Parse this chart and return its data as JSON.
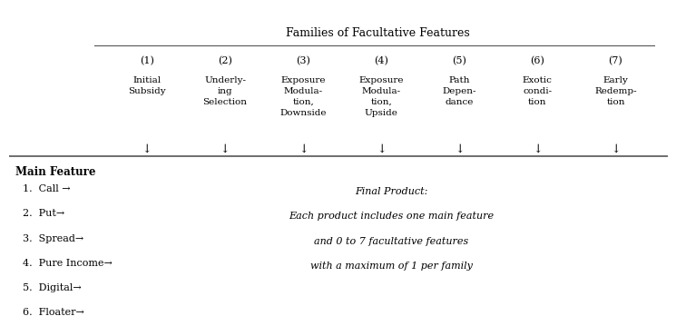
{
  "title": "Families of Facultative Features",
  "col_numbers": [
    "(1)",
    "(2)",
    "(3)",
    "(4)",
    "(5)",
    "(6)",
    "(7)"
  ],
  "col_headers": [
    "Initial\nSubsidy",
    "Underly-\ning\nSelection",
    "Exposure\nModula-\ntion,\nDownside",
    "Exposure\nModula-\ntion,\nUpside",
    "Path\nDepen-\ndance",
    "Exotic\ncondi-\ntion",
    "Early\nRedemp-\ntion"
  ],
  "main_feature_label": "Main Feature",
  "main_features": [
    "1.  Call →",
    "2.  Put→",
    "3.  Spread→",
    "4.  Pure Income→",
    "5.  Digital→",
    "6.  Floater→"
  ],
  "italic_lines": [
    "Final Product:",
    "Each product includes one main feature",
    "and 0 to 7 facultative features",
    "with a maximum of 1 per family"
  ],
  "background_color": "#ffffff",
  "text_color": "#000000",
  "line_color": "#555555"
}
